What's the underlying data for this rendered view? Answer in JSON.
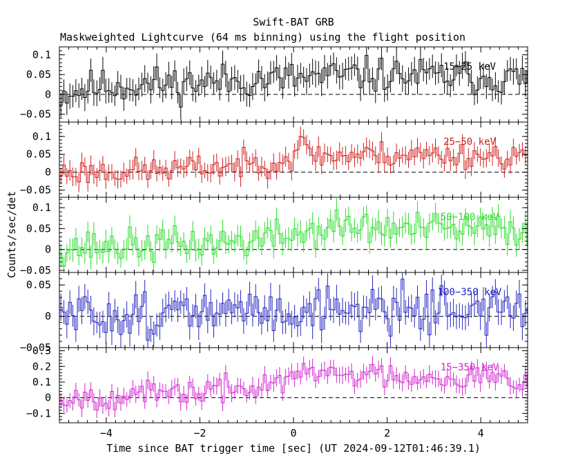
{
  "header": {
    "title": "Swift-BAT GRB",
    "subtitle": "Maskweighted Lightcurve (64 ms binning) using the flight position"
  },
  "chart_data": {
    "type": "line",
    "title": "Swift-BAT GRB",
    "subtitle": "Maskweighted Lightcurve (64 ms binning) using the flight position",
    "xlabel": "Time since BAT trigger time [sec] (UT 2024-09-12T01:46:39.1)",
    "ylabel": "Counts/sec/det",
    "xlim": [
      -5,
      5
    ],
    "x_ticks": [
      -4,
      -2,
      0,
      2,
      4
    ],
    "x_tick_labels": [
      "−4",
      "−2",
      "0",
      "2",
      "4"
    ],
    "bin_seconds": 0.064,
    "panels": [
      {
        "name": "15-25 keV",
        "label": "15−25 keV",
        "color": "#000000",
        "ylim": [
          -0.07,
          0.12
        ],
        "y_ticks": [
          -0.05,
          0,
          0.05,
          0.1
        ],
        "y_tick_labels": [
          "−0.05",
          "0",
          "0.05",
          "0.1"
        ],
        "trend": [
          [
            -5,
            0.0
          ],
          [
            -4.2,
            0.02
          ],
          [
            -2,
            0.03
          ],
          [
            0,
            0.04
          ],
          [
            1.5,
            0.05
          ],
          [
            5,
            0.04
          ]
        ],
        "noise": 0.022,
        "error": 0.03,
        "seed": 11
      },
      {
        "name": "25-50 keV",
        "label": "25−50 keV",
        "color": "#d01a1a",
        "ylim": [
          -0.07,
          0.14
        ],
        "y_ticks": [
          -0.05,
          0,
          0.05,
          0.1
        ],
        "y_tick_labels": [
          "−0.05",
          "0",
          "0.05",
          "0.1"
        ],
        "trend": [
          [
            -5,
            0.0
          ],
          [
            -3,
            0.005
          ],
          [
            -1,
            0.02
          ],
          [
            0,
            0.04
          ],
          [
            0.05,
            0.08
          ],
          [
            0.6,
            0.045
          ],
          [
            2,
            0.05
          ],
          [
            5,
            0.045
          ]
        ],
        "noise": 0.018,
        "error": 0.025,
        "seed": 23
      },
      {
        "name": "50-100 keV",
        "label": "50−100 keV",
        "color": "#22dd22",
        "ylim": [
          -0.055,
          0.125
        ],
        "y_ticks": [
          -0.05,
          0,
          0.05,
          0.1
        ],
        "y_tick_labels": [
          "−0.05",
          "0",
          "0.05",
          "0.1"
        ],
        "trend": [
          [
            -5,
            0.005
          ],
          [
            -3,
            0.01
          ],
          [
            -1,
            0.02
          ],
          [
            0,
            0.035
          ],
          [
            1,
            0.055
          ],
          [
            2,
            0.05
          ],
          [
            5,
            0.045
          ]
        ],
        "noise": 0.02,
        "error": 0.025,
        "seed": 37
      },
      {
        "name": "100-350 keV",
        "label": "100−350 keV",
        "color": "#2020c0",
        "ylim": [
          -0.05,
          0.07
        ],
        "y_ticks": [
          -0.05,
          0,
          0.05
        ],
        "y_tick_labels": [
          "−0.05",
          "0",
          "0.05"
        ],
        "trend": [
          [
            -5,
            0.0
          ],
          [
            -2,
            0.005
          ],
          [
            0,
            0.01
          ],
          [
            2,
            0.015
          ],
          [
            5,
            0.01
          ]
        ],
        "noise": 0.018,
        "error": 0.02,
        "seed": 51
      },
      {
        "name": "15-350 keV",
        "label": "15−350 keV",
        "color": "#d020d0",
        "ylim": [
          -0.16,
          0.32
        ],
        "y_ticks": [
          -0.1,
          0,
          0.1,
          0.2,
          0.3
        ],
        "y_tick_labels": [
          "−0.1",
          "0",
          "0.1",
          "0.2",
          "0.3"
        ],
        "trend": [
          [
            -5,
            0.0
          ],
          [
            -3,
            0.02
          ],
          [
            -1,
            0.06
          ],
          [
            0,
            0.12
          ],
          [
            0.2,
            0.16
          ],
          [
            1.5,
            0.15
          ],
          [
            5,
            0.12
          ]
        ],
        "noise": 0.04,
        "error": 0.05,
        "seed": 67
      }
    ]
  }
}
